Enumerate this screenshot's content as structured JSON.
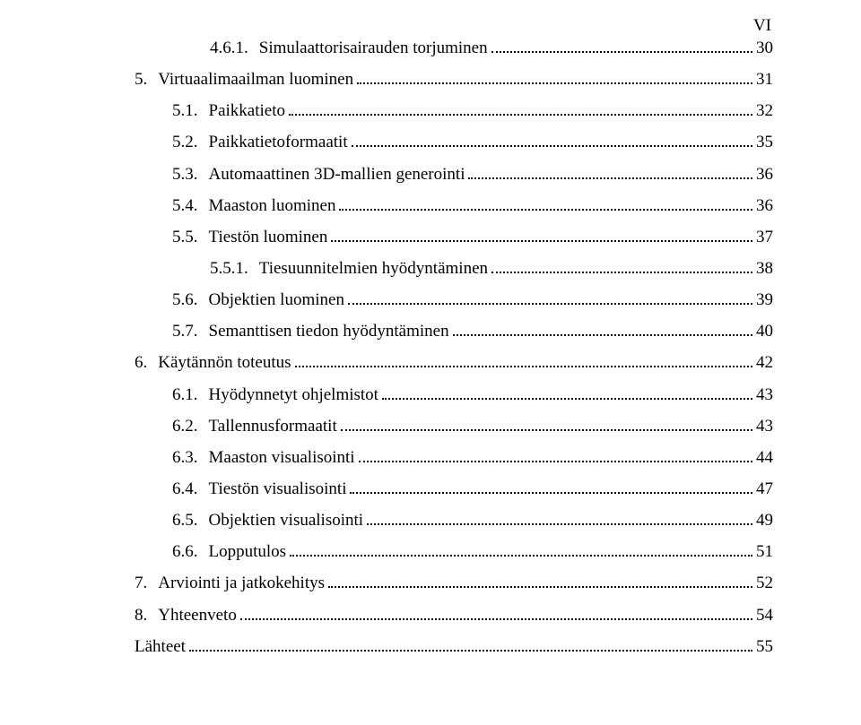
{
  "page_label": "VI",
  "toc": [
    {
      "indent": 2,
      "num": "4.6.1.",
      "title": "Simulaattorisairauden torjuminen",
      "page": "30"
    },
    {
      "indent": 0,
      "num": "5.",
      "title": "Virtuaalimaailman luominen",
      "page": "31"
    },
    {
      "indent": 1,
      "num": "5.1.",
      "title": "Paikkatieto",
      "page": "32"
    },
    {
      "indent": 1,
      "num": "5.2.",
      "title": "Paikkatietoformaatit",
      "page": "35"
    },
    {
      "indent": 1,
      "num": "5.3.",
      "title": "Automaattinen 3D-mallien generointi",
      "page": "36"
    },
    {
      "indent": 1,
      "num": "5.4.",
      "title": "Maaston luominen",
      "page": "36"
    },
    {
      "indent": 1,
      "num": "5.5.",
      "title": "Tiestön luominen",
      "page": "37"
    },
    {
      "indent": 2,
      "num": "5.5.1.",
      "title": "Tiesuunnitelmien hyödyntäminen",
      "page": "38"
    },
    {
      "indent": 1,
      "num": "5.6.",
      "title": "Objektien luominen",
      "page": "39"
    },
    {
      "indent": 1,
      "num": "5.7.",
      "title": "Semanttisen tiedon hyödyntäminen",
      "page": "40"
    },
    {
      "indent": 0,
      "num": "6.",
      "title": "Käytännön toteutus",
      "page": "42"
    },
    {
      "indent": 1,
      "num": "6.1.",
      "title": "Hyödynnetyt ohjelmistot",
      "page": "43"
    },
    {
      "indent": 1,
      "num": "6.2.",
      "title": "Tallennusformaatit",
      "page": "43"
    },
    {
      "indent": 1,
      "num": "6.3.",
      "title": "Maaston visualisointi",
      "page": "44"
    },
    {
      "indent": 1,
      "num": "6.4.",
      "title": "Tiestön visualisointi",
      "page": "47"
    },
    {
      "indent": 1,
      "num": "6.5.",
      "title": "Objektien visualisointi",
      "page": "49"
    },
    {
      "indent": 1,
      "num": "6.6.",
      "title": "Lopputulos",
      "page": "51"
    },
    {
      "indent": 0,
      "num": "7.",
      "title": "Arviointi ja jatkokehitys",
      "page": "52"
    },
    {
      "indent": 0,
      "num": "8.",
      "title": "Yhteenveto",
      "page": "54"
    },
    {
      "indent": 0,
      "num": "",
      "title": "Lähteet",
      "page": "55"
    }
  ]
}
